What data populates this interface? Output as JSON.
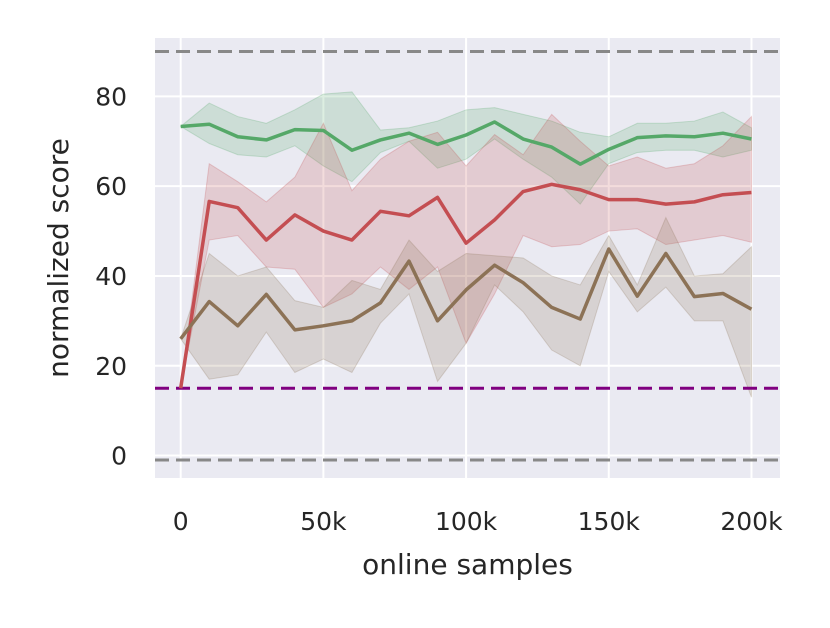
{
  "chart_data": {
    "type": "line",
    "xlabel": "online samples",
    "ylabel": "normalized score",
    "xlim": [
      -9000,
      210000
    ],
    "ylim": [
      -5,
      93
    ],
    "grid": true,
    "background": "#eaeaf2",
    "x_ticks": [
      {
        "value": 0,
        "label": "0"
      },
      {
        "value": 50000,
        "label": "50k"
      },
      {
        "value": 100000,
        "label": "100k"
      },
      {
        "value": 150000,
        "label": "150k"
      },
      {
        "value": 200000,
        "label": "200k"
      }
    ],
    "y_ticks": [
      {
        "value": 0,
        "label": "0"
      },
      {
        "value": 20,
        "label": "20"
      },
      {
        "value": 40,
        "label": "40"
      },
      {
        "value": 60,
        "label": "60"
      },
      {
        "value": 80,
        "label": "80"
      }
    ],
    "x": [
      0,
      10000,
      20000,
      30000,
      40000,
      50000,
      60000,
      70000,
      80000,
      90000,
      100000,
      110000,
      120000,
      130000,
      140000,
      150000,
      160000,
      170000,
      180000,
      190000,
      200000
    ],
    "series": [
      {
        "color": "#55a868",
        "values": [
          73.3,
          73.8,
          71.0,
          70.3,
          72.6,
          72.4,
          68.0,
          70.3,
          71.8,
          69.3,
          71.4,
          74.3,
          70.5,
          68.7,
          64.9,
          68.2,
          70.8,
          71.2,
          71.0,
          71.8,
          70.5
        ],
        "upper": [
          73.3,
          78.5,
          75.5,
          74.0,
          77.0,
          80.5,
          81.0,
          72.5,
          73.0,
          74.5,
          77.0,
          77.5,
          76.0,
          74.5,
          72.0,
          71.0,
          74.0,
          74.0,
          74.5,
          76.5,
          73.0
        ],
        "lower": [
          73.3,
          69.5,
          67.0,
          66.5,
          69.0,
          64.5,
          61.0,
          67.5,
          70.0,
          64.0,
          66.0,
          70.5,
          66.0,
          62.0,
          56.0,
          65.0,
          67.5,
          68.0,
          68.0,
          66.5,
          68.0
        ]
      },
      {
        "color": "#c44e52",
        "values": [
          15.0,
          56.6,
          55.2,
          48.0,
          53.6,
          50.0,
          48.0,
          54.4,
          53.4,
          57.5,
          47.3,
          52.5,
          58.8,
          60.4,
          59.2,
          57.0,
          57.0,
          56.0,
          56.5,
          58.1,
          58.6
        ],
        "upper": [
          15.0,
          65.0,
          61.0,
          56.5,
          62.0,
          74.0,
          59.0,
          66.0,
          70.0,
          72.0,
          64.5,
          71.5,
          67.0,
          76.0,
          70.0,
          64.5,
          66.5,
          64.0,
          65.0,
          69.0,
          75.5
        ],
        "lower": [
          15.0,
          48.0,
          49.0,
          42.0,
          41.5,
          33.0,
          36.0,
          42.0,
          37.0,
          42.0,
          25.0,
          36.0,
          49.0,
          46.5,
          47.0,
          50.0,
          50.5,
          47.0,
          48.0,
          49.0,
          47.5
        ]
      },
      {
        "color": "#8c7256",
        "values": [
          26.0,
          34.3,
          28.9,
          35.9,
          28.0,
          28.9,
          30.0,
          34.0,
          43.3,
          30.0,
          36.9,
          42.4,
          38.5,
          33.0,
          30.4,
          46.0,
          35.5,
          45.0,
          35.4,
          36.1,
          32.6
        ],
        "upper": [
          26.0,
          45.0,
          40.0,
          42.0,
          34.5,
          33.0,
          39.0,
          37.0,
          48.0,
          41.0,
          45.0,
          44.5,
          44.0,
          40.0,
          38.0,
          49.0,
          38.0,
          53.0,
          40.0,
          40.5,
          46.5
        ],
        "lower": [
          26.0,
          17.0,
          18.0,
          27.5,
          18.5,
          21.5,
          18.5,
          29.5,
          36.0,
          16.5,
          25.0,
          38.0,
          32.0,
          23.5,
          20.0,
          41.0,
          32.0,
          37.5,
          30.0,
          30.0,
          13.0
        ]
      }
    ],
    "reference_lines": [
      {
        "y": 90,
        "color": "#888888",
        "style": "dashed"
      },
      {
        "y": -1,
        "color": "#888888",
        "style": "dashed"
      },
      {
        "y": 15,
        "color": "#800080",
        "style": "dashed"
      }
    ]
  }
}
